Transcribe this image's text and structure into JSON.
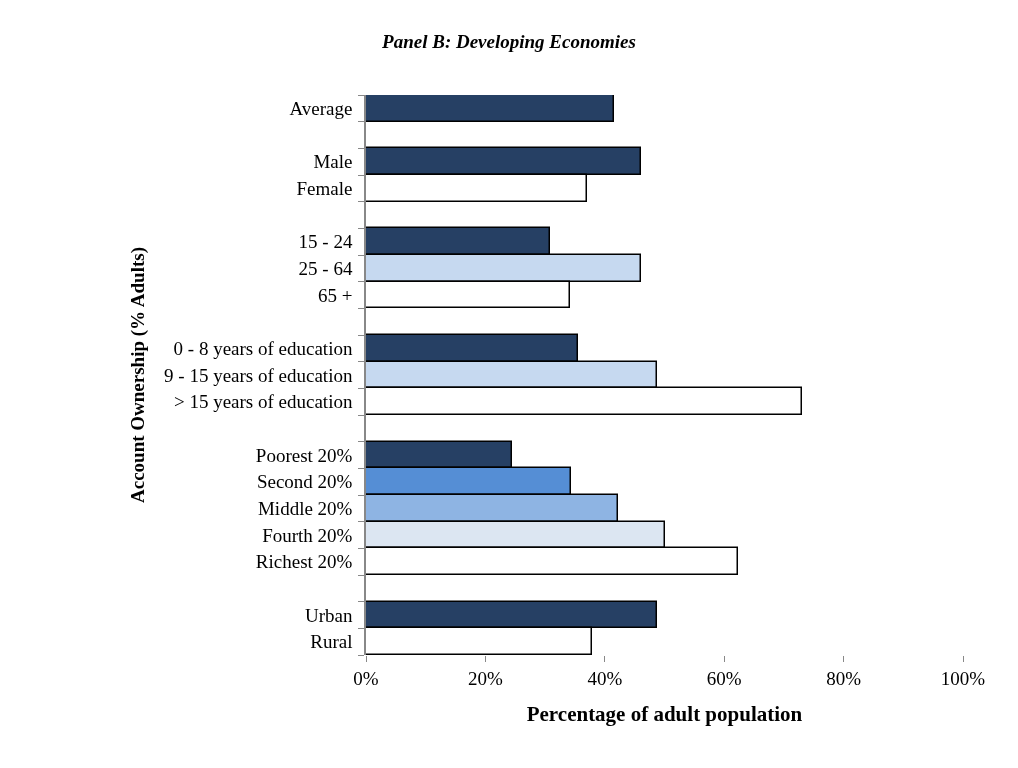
{
  "chart_data": {
    "type": "bar",
    "orientation": "horizontal",
    "title": "Panel B: Developing Economies",
    "xlabel": "Percentage of adult population",
    "ylabel": "Account Ownership (% Adults)",
    "categories": [
      "Average",
      null,
      "Male",
      "Female",
      null,
      "15 - 24",
      "25 - 64",
      "65 +",
      null,
      "0 - 8 years of education",
      "9 - 15 years of education",
      "> 15 years of education",
      null,
      "Poorest 20%",
      "Second 20%",
      "Middle 20%",
      "Fourth 20%",
      "Richest 20%",
      null,
      "Urban",
      "Rural"
    ],
    "values": [
      41.5,
      null,
      46.1,
      37.0,
      null,
      30.9,
      46.1,
      34.2,
      null,
      35.5,
      48.8,
      73.0,
      null,
      24.4,
      34.4,
      42.2,
      50.1,
      62.3,
      null,
      48.7,
      37.9
    ],
    "colors": [
      "#264064",
      null,
      "#264064",
      "#ffffff",
      null,
      "#264064",
      "#c6d9f0",
      "#ffffff",
      null,
      "#264064",
      "#c6d9f0",
      "#ffffff",
      null,
      "#264064",
      "#558ed5",
      "#8eb4e3",
      "#dce6f2",
      "#ffffff",
      null,
      "#264064",
      "#ffffff"
    ],
    "xlim": [
      0,
      100
    ],
    "xticks": [
      {
        "value": 0,
        "label": "0%"
      },
      {
        "value": 20,
        "label": "20%"
      },
      {
        "value": 40,
        "label": "40%"
      },
      {
        "value": 60,
        "label": "60%"
      },
      {
        "value": 80,
        "label": "80%"
      },
      {
        "value": 100,
        "label": "100%"
      }
    ],
    "grid": false
  }
}
